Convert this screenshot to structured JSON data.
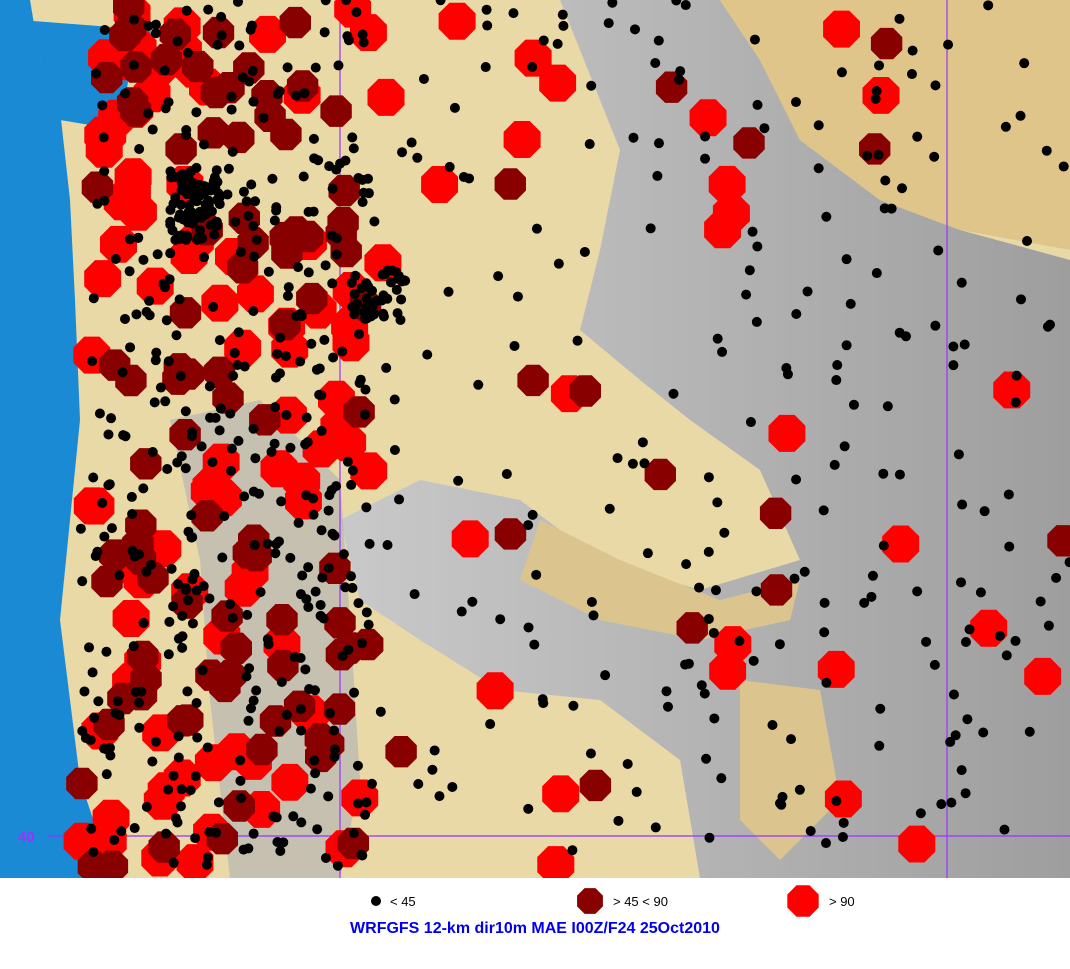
{
  "map": {
    "latitude_label": "40",
    "colors": {
      "ocean": "#1a8ad4",
      "lowland": "#e9d9a6",
      "terrain": "#a8a8a8",
      "gridline": "#9933ff",
      "small": "#000000",
      "medium": "#880000",
      "large": "#ff0000"
    }
  },
  "legend": [
    {
      "label": "< 45",
      "symbol": "black-dot"
    },
    {
      "label": "> 45 < 90",
      "symbol": "dark-red-octagon"
    },
    {
      "label": "> 90",
      "symbol": "red-octagon"
    }
  ],
  "title": "WRFGFS 12-km dir10m MAE I00Z/F24 25Oct2010"
}
